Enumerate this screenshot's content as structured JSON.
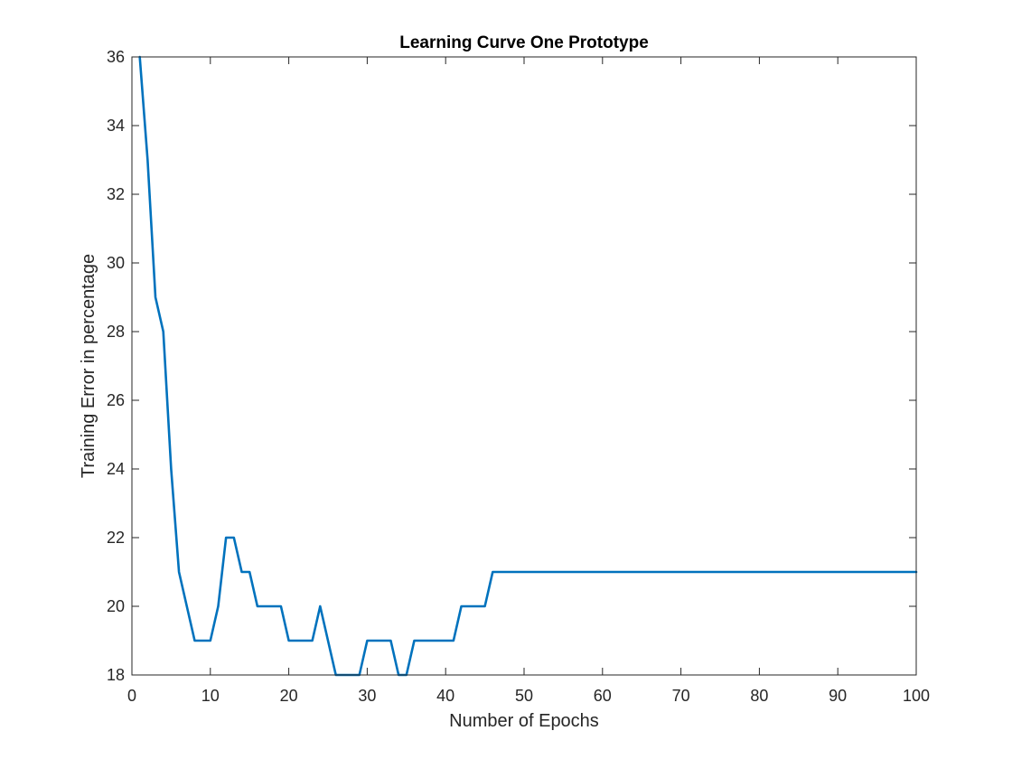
{
  "chart_data": {
    "type": "line",
    "title": "Learning Curve One Prototype",
    "xlabel": "Number of Epochs",
    "ylabel": "Training Error in percentage",
    "xlim": [
      0,
      100
    ],
    "ylim": [
      18,
      36
    ],
    "xticks": [
      0,
      10,
      20,
      30,
      40,
      50,
      60,
      70,
      80,
      90,
      100
    ],
    "yticks": [
      18,
      20,
      22,
      24,
      26,
      28,
      30,
      32,
      34,
      36
    ],
    "grid": false,
    "series": [
      {
        "color": "#0072BD",
        "x": [
          1,
          2,
          3,
          4,
          5,
          6,
          7,
          8,
          9,
          10,
          11,
          12,
          13,
          14,
          15,
          16,
          17,
          18,
          19,
          20,
          21,
          22,
          23,
          24,
          25,
          26,
          27,
          28,
          29,
          30,
          31,
          32,
          33,
          34,
          35,
          36,
          37,
          38,
          39,
          40,
          41,
          42,
          43,
          44,
          45,
          46,
          100
        ],
        "y": [
          36,
          33,
          29,
          28,
          24,
          21,
          20,
          19,
          19,
          19,
          20,
          22,
          22,
          21,
          21,
          20,
          20,
          20,
          20,
          19,
          19,
          19,
          19,
          20,
          19,
          18,
          18,
          18,
          18,
          19,
          19,
          19,
          19,
          18,
          18,
          19,
          19,
          19,
          19,
          19,
          19,
          20,
          20,
          20,
          20,
          21,
          21
        ]
      }
    ]
  }
}
